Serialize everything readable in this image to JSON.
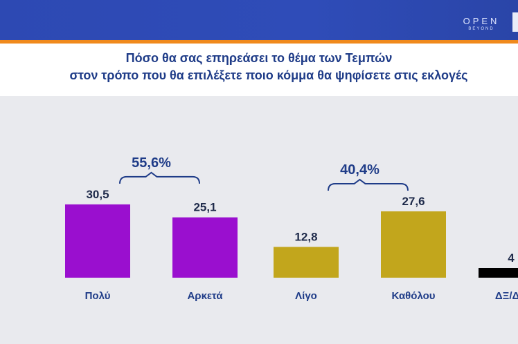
{
  "header": {
    "brand_name": "OPEN",
    "brand_sub": "BEYOND"
  },
  "chart_data": {
    "type": "bar",
    "title": "Πόσο θα σας επηρεάσει το θέμα των Τεμπών",
    "subtitle": "στον τρόπο που θα επιλέξετε ποιο κόμμα θα ψηφίσετε στις εκλογές",
    "categories": [
      "Πολύ",
      "Αρκετά",
      "Λίγο",
      "Καθόλου",
      "ΔΞ/ΔΑ"
    ],
    "values": [
      30.5,
      25.1,
      12.8,
      27.6,
      4.0
    ],
    "value_labels": [
      "30,5",
      "25,1",
      "12,8",
      "27,6",
      "4"
    ],
    "colors": [
      "#9a0fcf",
      "#9a0fcf",
      "#c2a61c",
      "#c2a61c",
      "#000000"
    ],
    "groups": [
      {
        "label": "55,6%",
        "members": [
          0,
          1
        ]
      },
      {
        "label": "40,4%",
        "members": [
          2,
          3
        ]
      }
    ],
    "xlabel": "",
    "ylabel": "",
    "grid": false,
    "legend": "none"
  }
}
